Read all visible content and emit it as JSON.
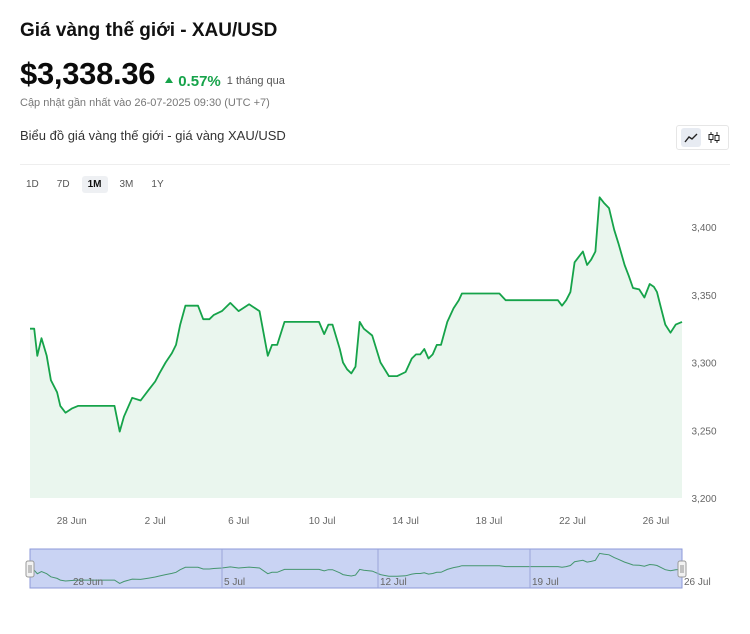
{
  "header": {
    "title": "Giá vàng thế giới - XAU/USD",
    "price": "$3,338.36",
    "change_pct": "0.57%",
    "change_period": "1 tháng qua",
    "updated": "Cập nhật gần nhất vào 26-07-2025 09:30 (UTC +7)"
  },
  "chart_section": {
    "subtitle": "Biểu đồ giá vàng thế giới - giá vàng XAU/USD",
    "toggle": [
      {
        "name": "line-chart-icon",
        "active": true
      },
      {
        "name": "candlestick-icon",
        "active": false
      }
    ],
    "ranges": [
      {
        "label": "1D",
        "active": false
      },
      {
        "label": "7D",
        "active": false
      },
      {
        "label": "1M",
        "active": true
      },
      {
        "label": "3M",
        "active": false
      },
      {
        "label": "1Y",
        "active": false
      }
    ]
  },
  "colors": {
    "line": "#16a34a",
    "area": "#eaf6ee",
    "navigator_fill": "#c9d3f3",
    "navigator_border": "#8d9ad8",
    "navigator_line": "#2e8b57"
  },
  "chart_data": {
    "type": "area",
    "title": "",
    "xlabel": "",
    "ylabel": "",
    "x_range": [
      26.0,
      57.25
    ],
    "ylim": [
      3200,
      3420
    ],
    "y_ticks": [
      {
        "value": 3200,
        "label": "3,200"
      },
      {
        "value": 3250,
        "label": "3,250"
      },
      {
        "value": 3300,
        "label": "3,300"
      },
      {
        "value": 3350,
        "label": "3,350"
      },
      {
        "value": 3400,
        "label": "3,400"
      }
    ],
    "x_ticks": [
      {
        "value": 28,
        "label": "28 Jun"
      },
      {
        "value": 32,
        "label": "2 Jul"
      },
      {
        "value": 36,
        "label": "6 Jul"
      },
      {
        "value": 40,
        "label": "10 Jul"
      },
      {
        "value": 44,
        "label": "14 Jul"
      },
      {
        "value": 48,
        "label": "18 Jul"
      },
      {
        "value": 52,
        "label": "22 Jul"
      },
      {
        "value": 56,
        "label": "26 Jul"
      }
    ],
    "series": [
      {
        "x": [
          26.0,
          26.2,
          26.35,
          26.55,
          26.8,
          27.0,
          27.3,
          27.45,
          27.7,
          28.0,
          28.3,
          28.7,
          29.2,
          29.6,
          29.85,
          30.05,
          30.3,
          30.5,
          30.9,
          31.3,
          31.7,
          32.0,
          32.2,
          32.5,
          32.8,
          33.0,
          33.2,
          33.45,
          33.7,
          33.85,
          34.05,
          34.3,
          34.6,
          34.8,
          35.2,
          35.6,
          36.0,
          36.5,
          37.0,
          37.4,
          37.6,
          37.85,
          38.2,
          38.5,
          38.8,
          39.0,
          39.2,
          39.4,
          39.65,
          39.85,
          40.1,
          40.3,
          40.5,
          40.85,
          41.0,
          41.2,
          41.4,
          41.6,
          41.8,
          42.0,
          42.4,
          42.8,
          43.2,
          43.6,
          44.0,
          44.3,
          44.5,
          44.7,
          44.9,
          45.1,
          45.3,
          45.5,
          45.7,
          46.0,
          46.3,
          46.55,
          46.7,
          46.95,
          47.15,
          47.5,
          47.75,
          48.0,
          48.25,
          48.5,
          48.8,
          49.1,
          49.5,
          50.0,
          50.5,
          51.0,
          51.3,
          51.5,
          51.7,
          51.9,
          52.1,
          52.3,
          52.5,
          52.7,
          52.9,
          53.1,
          53.3,
          53.5,
          53.75,
          54.0,
          54.2,
          54.5,
          54.7,
          54.9,
          55.2,
          55.45,
          55.7,
          55.9,
          56.05,
          56.25,
          56.45,
          56.7,
          56.95,
          57.25
        ],
        "values": [
          3325,
          3325,
          3305,
          3318,
          3305,
          3287,
          3278,
          3268,
          3263,
          3266,
          3268,
          3268,
          3268,
          3268,
          3268,
          3268,
          3249,
          3260,
          3274,
          3272,
          3280,
          3286,
          3292,
          3300,
          3307,
          3313,
          3328,
          3342,
          3342,
          3342,
          3342,
          3332,
          3332,
          3335,
          3338,
          3344,
          3338,
          3343,
          3338,
          3305,
          3313,
          3313,
          3330,
          3330,
          3330,
          3330,
          3330,
          3330,
          3330,
          3330,
          3321,
          3328,
          3328,
          3310,
          3300,
          3295,
          3292,
          3297,
          3330,
          3325,
          3320,
          3300,
          3290,
          3290,
          3293,
          3303,
          3306,
          3306,
          3310,
          3303,
          3306,
          3313,
          3313,
          3330,
          3340,
          3346,
          3351,
          3351,
          3351,
          3351,
          3351,
          3351,
          3351,
          3351,
          3346,
          3346,
          3346,
          3346,
          3346,
          3346,
          3346,
          3342,
          3346,
          3352,
          3374,
          3378,
          3382,
          3372,
          3376,
          3382,
          3422,
          3418,
          3414,
          3398,
          3388,
          3372,
          3364,
          3355,
          3354,
          3348,
          3358,
          3356,
          3352,
          3340,
          3328,
          3322,
          3328,
          3330
        ]
      }
    ]
  },
  "navigator": {
    "labels": [
      {
        "value": 28,
        "label": "28 Jun"
      },
      {
        "value": 33,
        "label": "5 Jul"
      },
      {
        "value": 38,
        "label": "12 Jul"
      },
      {
        "value": 43,
        "label": "19 Jul"
      },
      {
        "value": 48,
        "label": "26 Jul"
      }
    ]
  }
}
